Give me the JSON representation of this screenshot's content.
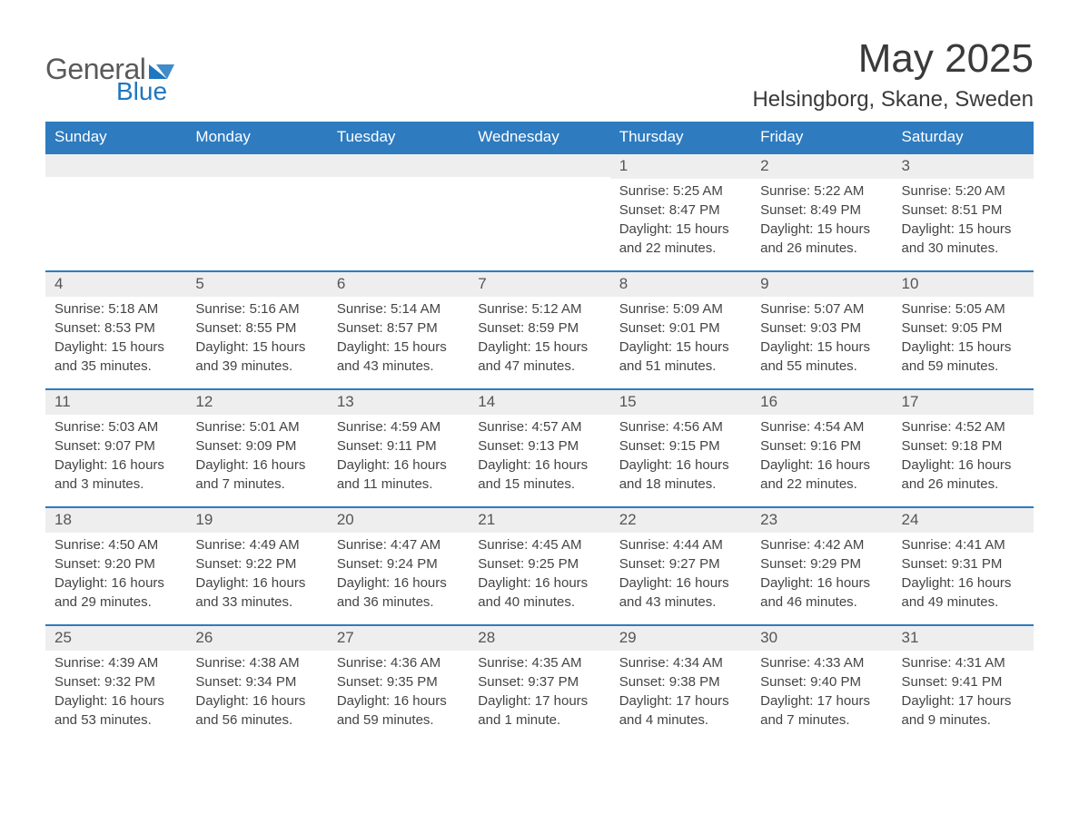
{
  "brand": {
    "text1": "General",
    "text2": "Blue",
    "accent_color": "#1f77c0"
  },
  "title": "May 2025",
  "location": "Helsingborg, Skane, Sweden",
  "colors": {
    "header_bg": "#2e7bbf",
    "header_text": "#ffffff",
    "row_border": "#2e7bbf",
    "daynum_bg": "#eeeeee",
    "body_text": "#444444",
    "page_bg": "#ffffff"
  },
  "weekdays": [
    "Sunday",
    "Monday",
    "Tuesday",
    "Wednesday",
    "Thursday",
    "Friday",
    "Saturday"
  ],
  "weeks": [
    [
      null,
      null,
      null,
      null,
      {
        "n": "1",
        "sunrise": "5:25 AM",
        "sunset": "8:47 PM",
        "daylight": "15 hours and 22 minutes."
      },
      {
        "n": "2",
        "sunrise": "5:22 AM",
        "sunset": "8:49 PM",
        "daylight": "15 hours and 26 minutes."
      },
      {
        "n": "3",
        "sunrise": "5:20 AM",
        "sunset": "8:51 PM",
        "daylight": "15 hours and 30 minutes."
      }
    ],
    [
      {
        "n": "4",
        "sunrise": "5:18 AM",
        "sunset": "8:53 PM",
        "daylight": "15 hours and 35 minutes."
      },
      {
        "n": "5",
        "sunrise": "5:16 AM",
        "sunset": "8:55 PM",
        "daylight": "15 hours and 39 minutes."
      },
      {
        "n": "6",
        "sunrise": "5:14 AM",
        "sunset": "8:57 PM",
        "daylight": "15 hours and 43 minutes."
      },
      {
        "n": "7",
        "sunrise": "5:12 AM",
        "sunset": "8:59 PM",
        "daylight": "15 hours and 47 minutes."
      },
      {
        "n": "8",
        "sunrise": "5:09 AM",
        "sunset": "9:01 PM",
        "daylight": "15 hours and 51 minutes."
      },
      {
        "n": "9",
        "sunrise": "5:07 AM",
        "sunset": "9:03 PM",
        "daylight": "15 hours and 55 minutes."
      },
      {
        "n": "10",
        "sunrise": "5:05 AM",
        "sunset": "9:05 PM",
        "daylight": "15 hours and 59 minutes."
      }
    ],
    [
      {
        "n": "11",
        "sunrise": "5:03 AM",
        "sunset": "9:07 PM",
        "daylight": "16 hours and 3 minutes."
      },
      {
        "n": "12",
        "sunrise": "5:01 AM",
        "sunset": "9:09 PM",
        "daylight": "16 hours and 7 minutes."
      },
      {
        "n": "13",
        "sunrise": "4:59 AM",
        "sunset": "9:11 PM",
        "daylight": "16 hours and 11 minutes."
      },
      {
        "n": "14",
        "sunrise": "4:57 AM",
        "sunset": "9:13 PM",
        "daylight": "16 hours and 15 minutes."
      },
      {
        "n": "15",
        "sunrise": "4:56 AM",
        "sunset": "9:15 PM",
        "daylight": "16 hours and 18 minutes."
      },
      {
        "n": "16",
        "sunrise": "4:54 AM",
        "sunset": "9:16 PM",
        "daylight": "16 hours and 22 minutes."
      },
      {
        "n": "17",
        "sunrise": "4:52 AM",
        "sunset": "9:18 PM",
        "daylight": "16 hours and 26 minutes."
      }
    ],
    [
      {
        "n": "18",
        "sunrise": "4:50 AM",
        "sunset": "9:20 PM",
        "daylight": "16 hours and 29 minutes."
      },
      {
        "n": "19",
        "sunrise": "4:49 AM",
        "sunset": "9:22 PM",
        "daylight": "16 hours and 33 minutes."
      },
      {
        "n": "20",
        "sunrise": "4:47 AM",
        "sunset": "9:24 PM",
        "daylight": "16 hours and 36 minutes."
      },
      {
        "n": "21",
        "sunrise": "4:45 AM",
        "sunset": "9:25 PM",
        "daylight": "16 hours and 40 minutes."
      },
      {
        "n": "22",
        "sunrise": "4:44 AM",
        "sunset": "9:27 PM",
        "daylight": "16 hours and 43 minutes."
      },
      {
        "n": "23",
        "sunrise": "4:42 AM",
        "sunset": "9:29 PM",
        "daylight": "16 hours and 46 minutes."
      },
      {
        "n": "24",
        "sunrise": "4:41 AM",
        "sunset": "9:31 PM",
        "daylight": "16 hours and 49 minutes."
      }
    ],
    [
      {
        "n": "25",
        "sunrise": "4:39 AM",
        "sunset": "9:32 PM",
        "daylight": "16 hours and 53 minutes."
      },
      {
        "n": "26",
        "sunrise": "4:38 AM",
        "sunset": "9:34 PM",
        "daylight": "16 hours and 56 minutes."
      },
      {
        "n": "27",
        "sunrise": "4:36 AM",
        "sunset": "9:35 PM",
        "daylight": "16 hours and 59 minutes."
      },
      {
        "n": "28",
        "sunrise": "4:35 AM",
        "sunset": "9:37 PM",
        "daylight": "17 hours and 1 minute."
      },
      {
        "n": "29",
        "sunrise": "4:34 AM",
        "sunset": "9:38 PM",
        "daylight": "17 hours and 4 minutes."
      },
      {
        "n": "30",
        "sunrise": "4:33 AM",
        "sunset": "9:40 PM",
        "daylight": "17 hours and 7 minutes."
      },
      {
        "n": "31",
        "sunrise": "4:31 AM",
        "sunset": "9:41 PM",
        "daylight": "17 hours and 9 minutes."
      }
    ]
  ],
  "labels": {
    "sunrise": "Sunrise:",
    "sunset": "Sunset:",
    "daylight": "Daylight:"
  }
}
